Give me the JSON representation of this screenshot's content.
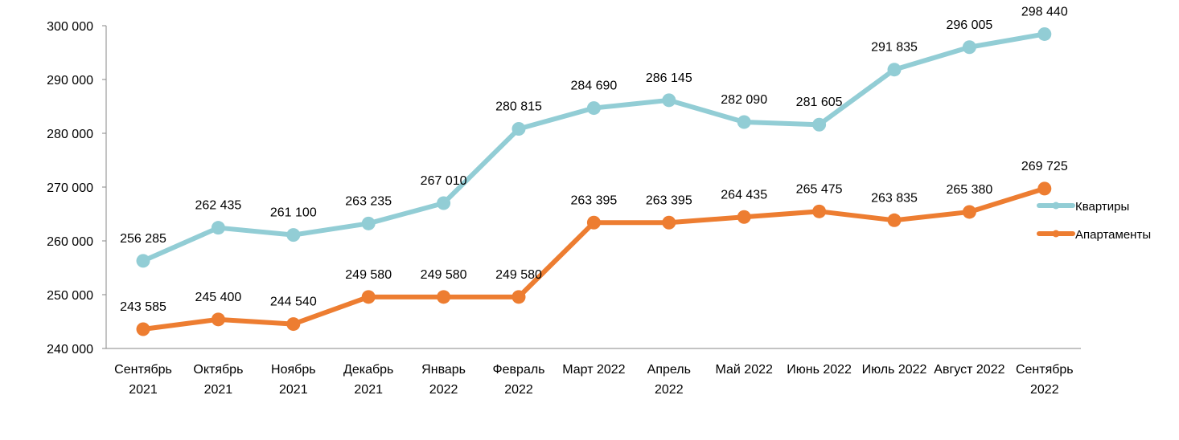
{
  "chart_data": {
    "type": "line",
    "title": "",
    "xlabel": "",
    "ylabel": "",
    "ylim": [
      240000,
      300000
    ],
    "yticks": [
      "240 000",
      "250 000",
      "260 000",
      "270 000",
      "280 000",
      "290 000",
      "300 000"
    ],
    "ytick_values": [
      240000,
      250000,
      260000,
      270000,
      280000,
      290000,
      300000
    ],
    "categories": [
      [
        "Сентябрь",
        "2021"
      ],
      [
        "Октябрь",
        "2021"
      ],
      [
        "Ноябрь",
        "2021"
      ],
      [
        "Декабрь",
        "2021"
      ],
      [
        "Январь",
        "2022"
      ],
      [
        "Февраль",
        "2022"
      ],
      [
        "Март 2022"
      ],
      [
        "Апрель",
        "2022"
      ],
      [
        "Май 2022"
      ],
      [
        "Июнь 2022"
      ],
      [
        "Июль 2022"
      ],
      [
        "Август 2022"
      ],
      [
        "Сентябрь",
        "2022"
      ]
    ],
    "grid": false,
    "legend_position": "right",
    "series": [
      {
        "name": "Квартиры",
        "color": "#92CDD5",
        "values": [
          256285,
          262435,
          261100,
          263235,
          267010,
          280815,
          284690,
          286145,
          282090,
          281605,
          291835,
          296005,
          298440
        ],
        "labels": [
          "256 285",
          "262 435",
          "261 100",
          "263 235",
          "267 010",
          "280 815",
          "284 690",
          "286 145",
          "282 090",
          "281 605",
          "291 835",
          "296 005",
          "298 440"
        ]
      },
      {
        "name": "Апартаменты",
        "color": "#ED7D31",
        "values": [
          243585,
          245400,
          244540,
          249580,
          249580,
          249580,
          263395,
          263395,
          264435,
          265475,
          263835,
          265380,
          269725
        ],
        "labels": [
          "243 585",
          "245 400",
          "244 540",
          "249 580",
          "249 580",
          "249 580",
          "263 395",
          "263 395",
          "264 435",
          "265 475",
          "263 835",
          "265 380",
          "269 725"
        ]
      }
    ]
  }
}
